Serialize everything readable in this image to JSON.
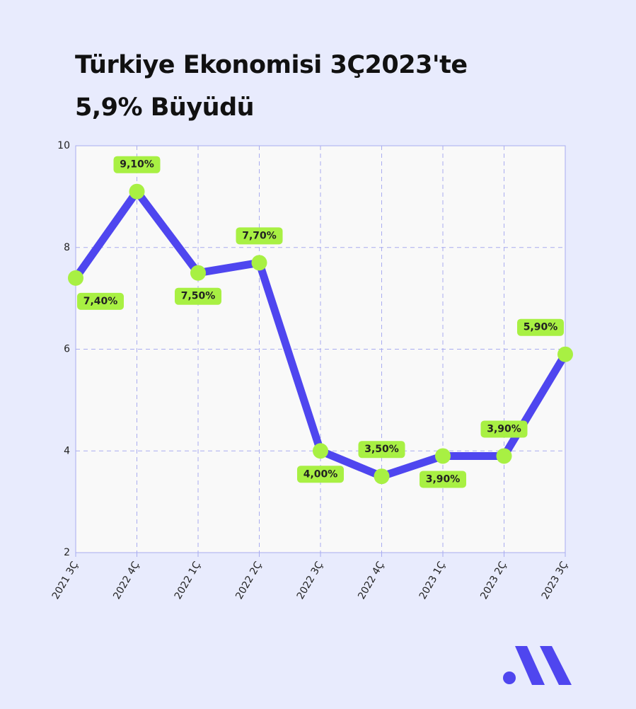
{
  "chart_data": {
    "type": "line",
    "title": [
      "Türkiye Ekonomisi 3Ç2023'te",
      "5,9% Büyüdü"
    ],
    "categories": [
      "2021 3Ç",
      "2022 4Ç",
      "2022 1Ç",
      "2022 2Ç",
      "2022 3Ç",
      "2022 4Ç",
      "2023 1Ç",
      "2023 2Ç",
      "2023 3Ç"
    ],
    "values": [
      7.4,
      9.1,
      7.5,
      7.7,
      4.0,
      3.5,
      3.9,
      3.9,
      5.9
    ],
    "value_labels": [
      "7,40%",
      "9,10%",
      "7,50%",
      "7,70%",
      "4,00%",
      "3,50%",
      "3,90%",
      "3,90%",
      "5,90%"
    ],
    "color": "#4f46ef",
    "marker_color": "#a8f043",
    "ylim": [
      2,
      10
    ],
    "yticks": [
      2,
      4,
      6,
      8,
      10
    ],
    "grid": true
  }
}
